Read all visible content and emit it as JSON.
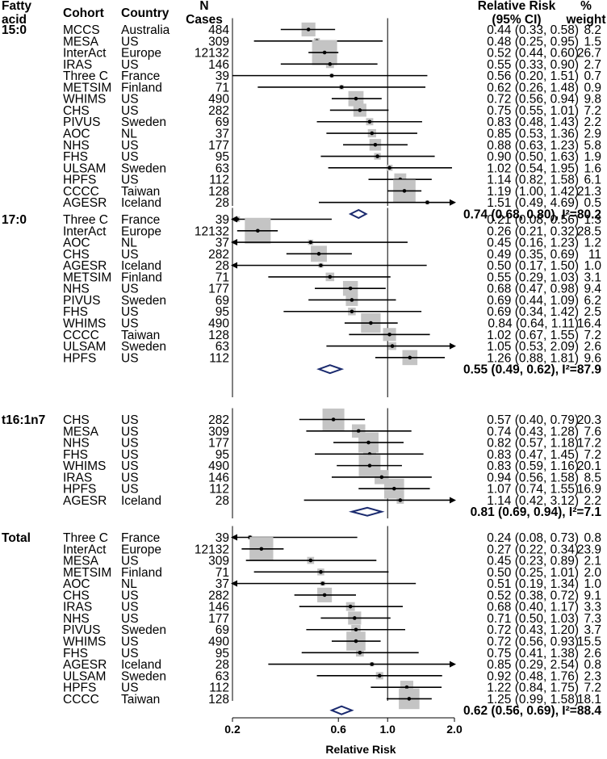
{
  "chart_data": {
    "type": "forest",
    "x_scale": "log",
    "xlim": [
      0.2,
      2.0
    ],
    "reference_line": 1.0,
    "xticks": [
      0.2,
      0.6,
      1.0,
      2.0
    ],
    "xtick_labels": [
      "0.2",
      "0.6",
      "1.0",
      "2.0"
    ],
    "xlabel": "Relative Risk",
    "headers": {
      "fatty_acid": [
        "Fatty",
        "acid"
      ],
      "cohort": "Cohort",
      "country": "Country",
      "n": [
        "N",
        "Cases"
      ],
      "rr": [
        "Relative Risk",
        "(95% CI)"
      ],
      "weight": [
        "%",
        "weight"
      ]
    },
    "colors": {
      "box": "#c4c4c4",
      "line": "#000000",
      "diamond": "#1a2a6e",
      "text": "#000000"
    },
    "sections": [
      {
        "name": "15:0",
        "rows": [
          {
            "cohort": "MCCS",
            "country": "Australia",
            "n": "484",
            "rr": 0.44,
            "lo": 0.33,
            "hi": 0.58,
            "ci_text": "0.44 (0.33, 0.58)",
            "weight": 8.2,
            "weight_text": "8.2"
          },
          {
            "cohort": "MESA",
            "country": "US",
            "n": "309",
            "rr": 0.48,
            "lo": 0.25,
            "hi": 0.95,
            "ci_text": "0.48 (0.25, 0.95)",
            "weight": 1.5,
            "weight_text": "1.5"
          },
          {
            "cohort": "InterAct",
            "country": "Europe",
            "n": "12132",
            "rr": 0.52,
            "lo": 0.44,
            "hi": 0.6,
            "ci_text": "0.52 (0.44, 0.60)",
            "weight": 26.7,
            "weight_text": "26.7"
          },
          {
            "cohort": "IRAS",
            "country": "US",
            "n": "146",
            "rr": 0.55,
            "lo": 0.33,
            "hi": 0.9,
            "ci_text": "0.55 (0.33, 0.90)",
            "weight": 2.7,
            "weight_text": "2.7"
          },
          {
            "cohort": "Three C",
            "country": "France",
            "n": "39",
            "rr": 0.56,
            "lo": 0.2,
            "hi": 1.51,
            "ci_text": "0.56 (0.20, 1.51)",
            "weight": 0.7,
            "weight_text": "0.7"
          },
          {
            "cohort": "METSIM",
            "country": "Finland",
            "n": "71",
            "rr": 0.62,
            "lo": 0.26,
            "hi": 1.48,
            "ci_text": "0.62 (0.26, 1.48)",
            "weight": 0.9,
            "weight_text": "0.9"
          },
          {
            "cohort": "WHIMS",
            "country": "US",
            "n": "490",
            "rr": 0.72,
            "lo": 0.56,
            "hi": 0.94,
            "ci_text": "0.72 (0.56, 0.94)",
            "weight": 9.8,
            "weight_text": "9.8"
          },
          {
            "cohort": "CHS",
            "country": "US",
            "n": "282",
            "rr": 0.75,
            "lo": 0.55,
            "hi": 1.01,
            "ci_text": "0.75 (0.55, 1.01)",
            "weight": 7.2,
            "weight_text": "7.2"
          },
          {
            "cohort": "PIVUS",
            "country": "Sweden",
            "n": "69",
            "rr": 0.83,
            "lo": 0.48,
            "hi": 1.43,
            "ci_text": "0.83 (0.48, 1.43)",
            "weight": 2.2,
            "weight_text": "2.2"
          },
          {
            "cohort": "AOC",
            "country": "NL",
            "n": "37",
            "rr": 0.85,
            "lo": 0.53,
            "hi": 1.36,
            "ci_text": "0.85 (0.53, 1.36)",
            "weight": 2.9,
            "weight_text": "2.9"
          },
          {
            "cohort": "NHS",
            "country": "US",
            "n": "177",
            "rr": 0.88,
            "lo": 0.63,
            "hi": 1.23,
            "ci_text": "0.88 (0.63, 1.23)",
            "weight": 5.8,
            "weight_text": "5.8"
          },
          {
            "cohort": "FHS",
            "country": "US",
            "n": "95",
            "rr": 0.9,
            "lo": 0.5,
            "hi": 1.63,
            "ci_text": "0.90 (0.50, 1.63)",
            "weight": 1.9,
            "weight_text": "1.9"
          },
          {
            "cohort": "ULSAM",
            "country": "Sweden",
            "n": "63",
            "rr": 1.02,
            "lo": 0.54,
            "hi": 1.95,
            "ci_text": "1.02 (0.54, 1.95)",
            "weight": 1.6,
            "weight_text": "1.6"
          },
          {
            "cohort": "HPFS",
            "country": "US",
            "n": "112",
            "rr": 1.14,
            "lo": 0.82,
            "hi": 1.58,
            "ci_text": "1.14 (0.82, 1.58)",
            "weight": 6.1,
            "weight_text": "6.1"
          },
          {
            "cohort": "CCCC",
            "country": "Taiwan",
            "n": "128",
            "rr": 1.19,
            "lo": 1.0,
            "hi": 1.42,
            "ci_text": "1.19 (1.00, 1.42)",
            "weight": 21.3,
            "weight_text": "21.3"
          },
          {
            "cohort": "AGESR",
            "country": "Iceland",
            "n": "28",
            "rr": 1.51,
            "lo": 0.49,
            "hi": 4.69,
            "ci_text": "1.51 (0.49, 4.69)",
            "weight": 0.5,
            "weight_text": "0.5"
          }
        ],
        "pooled": {
          "rr": 0.74,
          "lo": 0.68,
          "hi": 0.8,
          "text": "0.74 (0.68, 0.80), I²=80.2"
        }
      },
      {
        "name": "17:0",
        "rows": [
          {
            "cohort": "Three C",
            "country": "France",
            "n": "39",
            "rr": 0.21,
            "lo": 0.08,
            "hi": 0.56,
            "ci_text": "0.21 (0.08, 0.56)",
            "weight": 1.3,
            "weight_text": "1.3"
          },
          {
            "cohort": "InterAct",
            "country": "Europe",
            "n": "12132",
            "rr": 0.26,
            "lo": 0.21,
            "hi": 0.32,
            "ci_text": "0.26 (0.21, 0.32)",
            "weight": 28.5,
            "weight_text": "28.5"
          },
          {
            "cohort": "AOC",
            "country": "NL",
            "n": "37",
            "rr": 0.45,
            "lo": 0.16,
            "hi": 1.23,
            "ci_text": "0.45 (0.16, 1.23)",
            "weight": 1.2,
            "weight_text": "1.2"
          },
          {
            "cohort": "CHS",
            "country": "US",
            "n": "282",
            "rr": 0.49,
            "lo": 0.35,
            "hi": 0.69,
            "ci_text": "0.49 (0.35, 0.69)",
            "weight": 11,
            "weight_text": "11"
          },
          {
            "cohort": "AGESR",
            "country": "Iceland",
            "n": "28",
            "rr": 0.5,
            "lo": 0.17,
            "hi": 1.5,
            "ci_text": "0.50 (0.17, 1.50)",
            "weight": 1.0,
            "weight_text": "1.0"
          },
          {
            "cohort": "METSIM",
            "country": "Finland",
            "n": "71",
            "rr": 0.55,
            "lo": 0.29,
            "hi": 1.03,
            "ci_text": "0.55 (0.29, 1.03)",
            "weight": 3.1,
            "weight_text": "3.1"
          },
          {
            "cohort": "NHS",
            "country": "US",
            "n": "177",
            "rr": 0.68,
            "lo": 0.47,
            "hi": 0.98,
            "ci_text": "0.68 (0.47, 0.98)",
            "weight": 9.4,
            "weight_text": "9.4"
          },
          {
            "cohort": "PIVUS",
            "country": "Sweden",
            "n": "69",
            "rr": 0.69,
            "lo": 0.44,
            "hi": 1.09,
            "ci_text": "0.69 (0.44, 1.09)",
            "weight": 6.2,
            "weight_text": "6.2"
          },
          {
            "cohort": "FHS",
            "country": "US",
            "n": "95",
            "rr": 0.69,
            "lo": 0.34,
            "hi": 1.42,
            "ci_text": "0.69 (0.34, 1.42)",
            "weight": 2.5,
            "weight_text": "2.5"
          },
          {
            "cohort": "WHIMS",
            "country": "US",
            "n": "490",
            "rr": 0.84,
            "lo": 0.64,
            "hi": 1.11,
            "ci_text": "0.84 (0.64, 1.11)",
            "weight": 16.4,
            "weight_text": "16.4"
          },
          {
            "cohort": "CCCC",
            "country": "Taiwan",
            "n": "128",
            "rr": 1.02,
            "lo": 0.67,
            "hi": 1.55,
            "ci_text": "1.02 (0.67, 1.55)",
            "weight": 7.2,
            "weight_text": "7.2"
          },
          {
            "cohort": "ULSAM",
            "country": "Sweden",
            "n": "63",
            "rr": 1.05,
            "lo": 0.53,
            "hi": 2.09,
            "ci_text": "1.05 (0.53, 2.09)",
            "weight": 2.6,
            "weight_text": "2.6"
          },
          {
            "cohort": "HPFS",
            "country": "US",
            "n": "112",
            "rr": 1.26,
            "lo": 0.88,
            "hi": 1.81,
            "ci_text": "1.26 (0.88, 1.81)",
            "weight": 9.6,
            "weight_text": "9.6"
          }
        ],
        "pooled": {
          "rr": 0.55,
          "lo": 0.49,
          "hi": 0.62,
          "text": "0.55 (0.49, 0.62), I²=87.9"
        }
      },
      {
        "name": "t16:1n7",
        "rows": [
          {
            "cohort": "CHS",
            "country": "US",
            "n": "282",
            "rr": 0.57,
            "lo": 0.4,
            "hi": 0.79,
            "ci_text": "0.57 (0.40, 0.79)",
            "weight": 20.3,
            "weight_text": "20.3"
          },
          {
            "cohort": "MESA",
            "country": "US",
            "n": "309",
            "rr": 0.74,
            "lo": 0.43,
            "hi": 1.28,
            "ci_text": "0.74 (0.43, 1.28)",
            "weight": 7.6,
            "weight_text": "7.6"
          },
          {
            "cohort": "NHS",
            "country": "US",
            "n": "177",
            "rr": 0.82,
            "lo": 0.57,
            "hi": 1.18,
            "ci_text": "0.82 (0.57, 1.18)",
            "weight": 17.2,
            "weight_text": "17.2"
          },
          {
            "cohort": "FHS",
            "country": "US",
            "n": "95",
            "rr": 0.83,
            "lo": 0.47,
            "hi": 1.45,
            "ci_text": "0.83 (0.47, 1.45)",
            "weight": 7.2,
            "weight_text": "7.2"
          },
          {
            "cohort": "WHIMS",
            "country": "US",
            "n": "490",
            "rr": 0.83,
            "lo": 0.59,
            "hi": 1.16,
            "ci_text": "0.83 (0.59, 1.16)",
            "weight": 20.1,
            "weight_text": "20.1"
          },
          {
            "cohort": "IRAS",
            "country": "US",
            "n": "146",
            "rr": 0.94,
            "lo": 0.56,
            "hi": 1.58,
            "ci_text": "0.94 (0.56, 1.58)",
            "weight": 8.5,
            "weight_text": "8.5"
          },
          {
            "cohort": "HPFS",
            "country": "US",
            "n": "112",
            "rr": 1.07,
            "lo": 0.74,
            "hi": 1.55,
            "ci_text": "1.07 (0.74, 1.55)",
            "weight": 16.9,
            "weight_text": "16.9"
          },
          {
            "cohort": "AGESR",
            "country": "Iceland",
            "n": "28",
            "rr": 1.14,
            "lo": 0.42,
            "hi": 3.12,
            "ci_text": "1.14 (0.42, 3.12)",
            "weight": 2.2,
            "weight_text": "2.2"
          }
        ],
        "pooled": {
          "rr": 0.81,
          "lo": 0.69,
          "hi": 0.94,
          "text": "0.81 (0.69, 0.94), I²=7.1"
        }
      },
      {
        "name": "Total",
        "rows": [
          {
            "cohort": "Three C",
            "country": "France",
            "n": "39",
            "rr": 0.24,
            "lo": 0.08,
            "hi": 0.73,
            "ci_text": "0.24 (0.08, 0.73)",
            "weight": 0.8,
            "weight_text": "0.8"
          },
          {
            "cohort": "InterAct",
            "country": "Europe",
            "n": "12132",
            "rr": 0.27,
            "lo": 0.22,
            "hi": 0.34,
            "ci_text": "0.27 (0.22, 0.34)",
            "weight": 23.9,
            "weight_text": "23.9"
          },
          {
            "cohort": "MESA",
            "country": "US",
            "n": "309",
            "rr": 0.45,
            "lo": 0.23,
            "hi": 0.89,
            "ci_text": "0.45 (0.23, 0.89)",
            "weight": 2.1,
            "weight_text": "2.1"
          },
          {
            "cohort": "METSIM",
            "country": "Finland",
            "n": "71",
            "rr": 0.5,
            "lo": 0.25,
            "hi": 1.01,
            "ci_text": "0.50 (0.25, 1.01)",
            "weight": 2.0,
            "weight_text": "2.0"
          },
          {
            "cohort": "AOC",
            "country": "NL",
            "n": "37",
            "rr": 0.51,
            "lo": 0.19,
            "hi": 1.34,
            "ci_text": "0.51 (0.19, 1.34)",
            "weight": 1.0,
            "weight_text": "1.0"
          },
          {
            "cohort": "CHS",
            "country": "US",
            "n": "282",
            "rr": 0.52,
            "lo": 0.38,
            "hi": 0.72,
            "ci_text": "0.52 (0.38, 0.72)",
            "weight": 9.1,
            "weight_text": "9.1"
          },
          {
            "cohort": "IRAS",
            "country": "US",
            "n": "146",
            "rr": 0.68,
            "lo": 0.4,
            "hi": 1.17,
            "ci_text": "0.68 (0.40, 1.17)",
            "weight": 3.3,
            "weight_text": "3.3"
          },
          {
            "cohort": "NHS",
            "country": "US",
            "n": "177",
            "rr": 0.71,
            "lo": 0.5,
            "hi": 1.03,
            "ci_text": "0.71 (0.50, 1.03)",
            "weight": 7.3,
            "weight_text": "7.3"
          },
          {
            "cohort": "PIVUS",
            "country": "Sweden",
            "n": "69",
            "rr": 0.72,
            "lo": 0.43,
            "hi": 1.2,
            "ci_text": "0.72 (0.43, 1.20)",
            "weight": 3.7,
            "weight_text": "3.7"
          },
          {
            "cohort": "WHIMS",
            "country": "US",
            "n": "490",
            "rr": 0.72,
            "lo": 0.56,
            "hi": 0.93,
            "ci_text": "0.72 (0.56, 0.93)",
            "weight": 15.5,
            "weight_text": "15.5"
          },
          {
            "cohort": "FHS",
            "country": "US",
            "n": "95",
            "rr": 0.75,
            "lo": 0.41,
            "hi": 1.38,
            "ci_text": "0.75 (0.41, 1.38)",
            "weight": 2.6,
            "weight_text": "2.6"
          },
          {
            "cohort": "AGESR",
            "country": "Iceland",
            "n": "28",
            "rr": 0.85,
            "lo": 0.29,
            "hi": 2.54,
            "ci_text": "0.85 (0.29, 2.54)",
            "weight": 0.8,
            "weight_text": "0.8"
          },
          {
            "cohort": "ULSAM",
            "country": "Sweden",
            "n": "63",
            "rr": 0.92,
            "lo": 0.48,
            "hi": 1.76,
            "ci_text": "0.92 (0.48, 1.76)",
            "weight": 2.3,
            "weight_text": "2.3"
          },
          {
            "cohort": "HPFS",
            "country": "US",
            "n": "112",
            "rr": 1.22,
            "lo": 0.84,
            "hi": 1.75,
            "ci_text": "1.22 (0.84, 1.75)",
            "weight": 7.2,
            "weight_text": "7.2"
          },
          {
            "cohort": "CCCC",
            "country": "Taiwan",
            "n": "128",
            "rr": 1.25,
            "lo": 0.99,
            "hi": 1.58,
            "ci_text": "1.25 (0.99, 1.58)",
            "weight": 18.1,
            "weight_text": "18.1"
          }
        ],
        "pooled": {
          "rr": 0.62,
          "lo": 0.56,
          "hi": 0.69,
          "text": "0.62 (0.56, 0.69), I²=88.4"
        }
      }
    ]
  }
}
